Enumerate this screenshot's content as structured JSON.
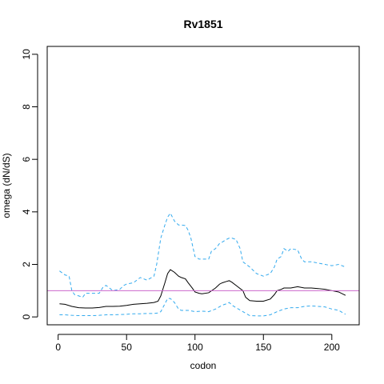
{
  "chart_data": {
    "type": "line",
    "title": "Rv1851",
    "xlabel": "codon",
    "ylabel": "omega (dN/dS)",
    "xlim": [
      -8,
      220
    ],
    "ylim": [
      -0.3,
      10.3
    ],
    "x_ticks": [
      0,
      50,
      100,
      150,
      200
    ],
    "y_ticks": [
      0,
      2,
      4,
      6,
      8,
      10
    ],
    "reference_line": {
      "y": 1,
      "color": "#cc66cc"
    },
    "series": [
      {
        "role": "estimate",
        "color": "#000000",
        "dash": "solid",
        "x": [
          1,
          5,
          10,
          15,
          20,
          25,
          30,
          35,
          40,
          45,
          50,
          55,
          60,
          65,
          70,
          73,
          75,
          78,
          80,
          82,
          85,
          88,
          90,
          93,
          95,
          98,
          100,
          103,
          105,
          110,
          115,
          118,
          120,
          123,
          125,
          127,
          130,
          135,
          137,
          140,
          145,
          150,
          155,
          158,
          160,
          163,
          165,
          170,
          175,
          180,
          185,
          190,
          195,
          200,
          205,
          210
        ],
        "y": [
          0.5,
          0.48,
          0.4,
          0.35,
          0.34,
          0.34,
          0.36,
          0.4,
          0.4,
          0.41,
          0.44,
          0.48,
          0.5,
          0.52,
          0.55,
          0.6,
          0.8,
          1.3,
          1.65,
          1.8,
          1.7,
          1.55,
          1.5,
          1.45,
          1.3,
          1.1,
          0.95,
          0.9,
          0.88,
          0.92,
          1.1,
          1.25,
          1.3,
          1.35,
          1.38,
          1.32,
          1.2,
          1.0,
          0.75,
          0.62,
          0.6,
          0.6,
          0.68,
          0.85,
          1.0,
          1.05,
          1.1,
          1.1,
          1.15,
          1.1,
          1.1,
          1.08,
          1.05,
          1.0,
          0.95,
          0.82
        ]
      },
      {
        "role": "upper bound",
        "color": "#33aaee",
        "dash": "dashed",
        "x": [
          1,
          5,
          8,
          10,
          12,
          15,
          18,
          20,
          25,
          30,
          33,
          35,
          40,
          45,
          48,
          50,
          55,
          60,
          65,
          70,
          72,
          75,
          78,
          80,
          82,
          85,
          88,
          90,
          93,
          95,
          97,
          100,
          103,
          105,
          108,
          110,
          112,
          115,
          118,
          120,
          123,
          125,
          127,
          130,
          133,
          135,
          140,
          145,
          150,
          155,
          158,
          160,
          163,
          165,
          168,
          170,
          175,
          178,
          180,
          185,
          190,
          195,
          200,
          205,
          210
        ],
        "y": [
          1.75,
          1.6,
          1.55,
          1.0,
          0.85,
          0.8,
          0.75,
          0.9,
          0.9,
          0.9,
          1.15,
          1.2,
          1.0,
          1.05,
          1.2,
          1.25,
          1.3,
          1.5,
          1.4,
          1.55,
          2.0,
          3.0,
          3.5,
          3.8,
          3.95,
          3.65,
          3.5,
          3.5,
          3.48,
          3.3,
          3.0,
          2.3,
          2.2,
          2.2,
          2.2,
          2.2,
          2.5,
          2.6,
          2.8,
          2.85,
          2.95,
          3.0,
          3.0,
          2.95,
          2.6,
          2.1,
          1.9,
          1.65,
          1.55,
          1.65,
          1.9,
          2.2,
          2.3,
          2.6,
          2.5,
          2.6,
          2.55,
          2.2,
          2.1,
          2.1,
          2.05,
          2.0,
          1.95,
          2.0,
          1.9
        ]
      },
      {
        "role": "lower bound",
        "color": "#33aaee",
        "dash": "dashed",
        "x": [
          1,
          5,
          10,
          15,
          20,
          25,
          30,
          35,
          40,
          45,
          50,
          55,
          60,
          65,
          70,
          73,
          75,
          78,
          80,
          82,
          85,
          88,
          90,
          95,
          100,
          105,
          110,
          115,
          120,
          123,
          125,
          127,
          130,
          135,
          140,
          145,
          150,
          155,
          160,
          165,
          170,
          175,
          180,
          185,
          190,
          195,
          200,
          205,
          210
        ],
        "y": [
          0.08,
          0.08,
          0.06,
          0.05,
          0.05,
          0.05,
          0.06,
          0.08,
          0.08,
          0.09,
          0.1,
          0.12,
          0.12,
          0.13,
          0.13,
          0.15,
          0.2,
          0.5,
          0.7,
          0.7,
          0.55,
          0.3,
          0.25,
          0.25,
          0.2,
          0.22,
          0.2,
          0.3,
          0.45,
          0.5,
          0.55,
          0.45,
          0.35,
          0.2,
          0.05,
          0.04,
          0.04,
          0.08,
          0.2,
          0.3,
          0.35,
          0.35,
          0.4,
          0.42,
          0.4,
          0.38,
          0.3,
          0.25,
          0.1
        ]
      }
    ]
  }
}
